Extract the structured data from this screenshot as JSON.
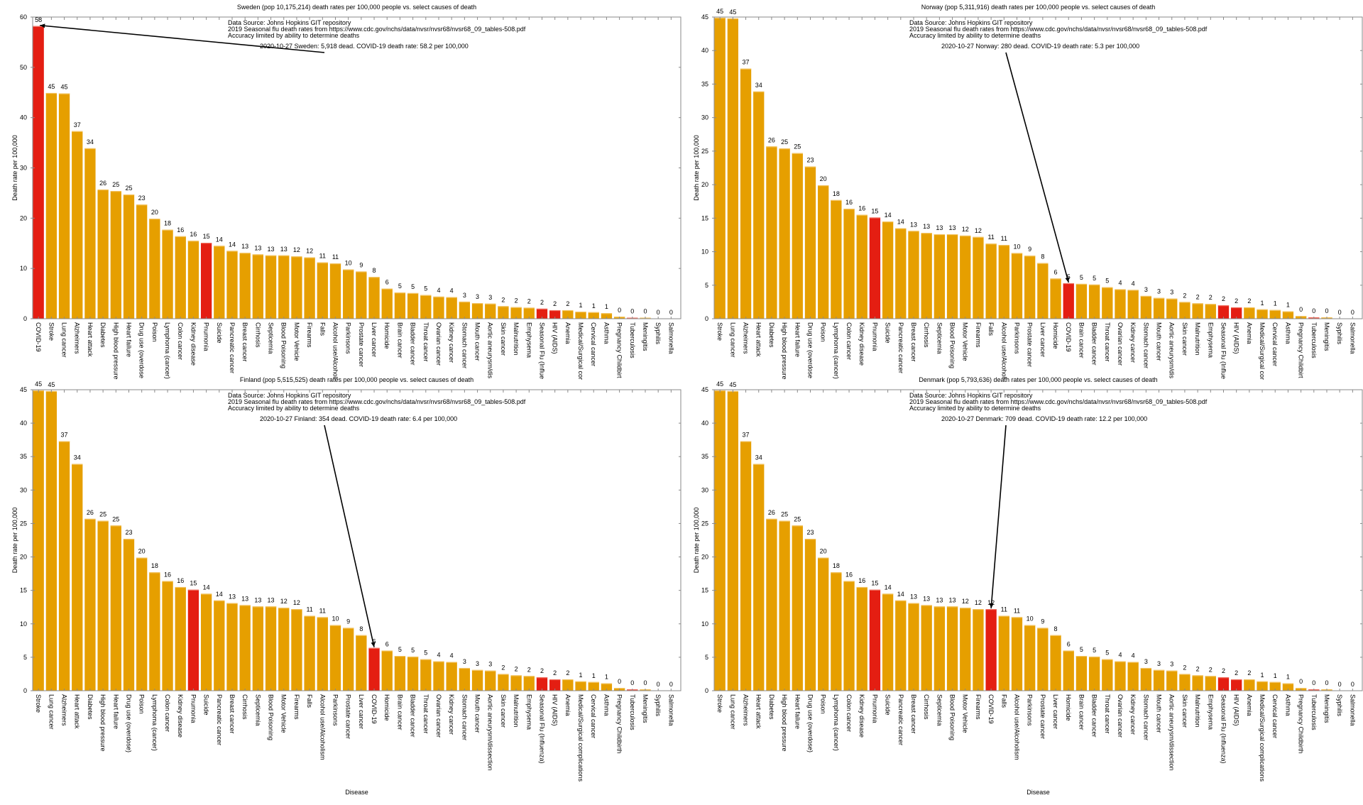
{
  "colors": {
    "bar_default": "#E69F00",
    "bar_highlight": "#E41E12",
    "bar_top_edge": "#F2C25E",
    "axis": "#8a8a8a",
    "text": "#000000"
  },
  "chart_data": [
    {
      "type": "bar",
      "panel": "top-left",
      "title": "Sweden (pop 10,175,214) death rates per 100,000 people vs. select causes of death",
      "xlabel": "",
      "ylabel": "Death rate per 100,000",
      "ylim": [
        0,
        60
      ],
      "yticks": [
        0,
        10,
        20,
        30,
        40,
        50,
        60
      ],
      "grid": false,
      "notes": [
        "Data Source: Johns Hopkins GIT repository",
        "2019 Seasonal flu death rates from https://www.cdc.gov/nchs/data/nvsr/nvsr68/nvsr68_09_tables-508.pdf",
        "Accuracy limited by ability to determine deaths"
      ],
      "annotation": "2020-10-27 Sweden: 5,918 dead.  COVID-19 death rate: 58.2 per 100,000",
      "annotation_target": "COVID-19",
      "categories": [
        "COVID-19",
        "Stroke",
        "Lung cancer",
        "Alzheimers",
        "Heart attack",
        "Diabetes",
        "High blood pressure",
        "Heart failure",
        "Drug use (overdose",
        "Poison",
        "Lymphoma (cancer)",
        "Colon cancer",
        "Kidney disease",
        "Pnumonia",
        "Suicide",
        "Pancreatic cancer",
        "Breast cancer",
        "Cirrhosis",
        "Septicemia",
        "Blood Poisoning",
        "Motor Vehicle",
        "Firearms",
        "Falls",
        "Alcohol use/Alcoholi",
        "Parkinsons",
        "Prostate cancer",
        "Liver cancer",
        "Homicide",
        "Brain cancer",
        "Bladder cancer",
        "Throat cancer",
        "Ovarian cancer",
        "Kidney cancer",
        "Stomach cancer",
        "Mouth cancer",
        "Aortic aneurysm/dis",
        "Skin cancer",
        "Malnutrition",
        "Emphysema",
        "Seasonal Flu (Influe",
        "HIV (AIDS)",
        "Anemia",
        "Medical/Surgical cor",
        "Cervical cancer",
        "Asthma",
        "Pregnancy  Childbirt",
        "Tuberculosis",
        "Meningitis",
        "Syphilis",
        "Salmonella"
      ],
      "values": [
        58.2,
        44.9,
        44.8,
        37.3,
        33.9,
        25.7,
        25.4,
        24.7,
        22.7,
        19.9,
        17.7,
        16.4,
        15.5,
        15.1,
        14.5,
        13.5,
        13.1,
        12.8,
        12.6,
        12.6,
        12.4,
        12.2,
        11.2,
        11.0,
        9.8,
        9.4,
        8.3,
        6.0,
        5.2,
        5.1,
        4.7,
        4.4,
        4.3,
        3.4,
        3.1,
        3.0,
        2.5,
        2.3,
        2.2,
        2.0,
        1.7,
        1.7,
        1.4,
        1.3,
        1.1,
        0.4,
        0.2,
        0.2,
        0.0,
        0.0
      ],
      "value_labels": [
        "58",
        "45",
        "45",
        "37",
        "34",
        "26",
        "25",
        "25",
        "23",
        "20",
        "18",
        "16",
        "16",
        "15",
        "14",
        "14",
        "13",
        "13",
        "13",
        "13",
        "12",
        "12",
        "11",
        "11",
        "10",
        "9",
        "8",
        "6",
        "5",
        "5",
        "5",
        "4",
        "4",
        "3",
        "3",
        "3",
        "2",
        "2",
        "2",
        "2",
        "2",
        "2",
        "1",
        "1",
        "1",
        "0",
        "0",
        "0",
        "0",
        "0"
      ],
      "highlighted": [
        "COVID-19",
        "Pnumonia",
        "Seasonal Flu (Influe",
        "HIV (AIDS)",
        "Tuberculosis"
      ]
    },
    {
      "type": "bar",
      "panel": "top-right",
      "title": "Norway (pop 5,311,916) death rates per 100,000 people vs. select causes of death",
      "xlabel": "",
      "ylabel": "Death rate per 100,000",
      "ylim": [
        0,
        45
      ],
      "yticks": [
        0,
        5,
        10,
        15,
        20,
        25,
        30,
        35,
        40,
        45
      ],
      "grid": false,
      "notes": [
        "Data Source: Johns Hopkins GIT repository",
        "2019 Seasonal flu death rates from https://www.cdc.gov/nchs/data/nvsr/nvsr68/nvsr68_09_tables-508.pdf",
        "Accuracy limited by ability to determine deaths"
      ],
      "annotation": "2020-10-27 Norway: 280 dead.  COVID-19 death rate: 5.3 per 100,000",
      "annotation_target": "COVID-19",
      "categories": [
        "Stroke",
        "Lung cancer",
        "Alzheimers",
        "Heart attack",
        "Diabetes",
        "High blood pressure",
        "Heart failure",
        "Drug use (overdose",
        "Poison",
        "Lymphoma (cancer)",
        "Colon cancer",
        "Kidney disease",
        "Pnumonia",
        "Suicide",
        "Pancreatic cancer",
        "Breast cancer",
        "Cirrhosis",
        "Septicemia",
        "Blood Poisoning",
        "Motor Vehicle",
        "Firearms",
        "Falls",
        "Alcohol use/Alcoholi",
        "Parkinsons",
        "Prostate cancer",
        "Liver cancer",
        "Homicide",
        "COVID-19",
        "Brain cancer",
        "Bladder cancer",
        "Throat cancer",
        "Ovarian cancer",
        "Kidney cancer",
        "Stomach cancer",
        "Mouth cancer",
        "Aortic aneurysm/dis",
        "Skin cancer",
        "Malnutrition",
        "Emphysema",
        "Seasonal Flu (Influe",
        "HIV (AIDS)",
        "Anemia",
        "Medical/Surgical cor",
        "Cervical cancer",
        "Asthma",
        "Pregnancy  Childbirt",
        "Tuberculosis",
        "Meningitis",
        "Syphilis",
        "Salmonella"
      ],
      "values": [
        44.9,
        44.8,
        37.3,
        33.9,
        25.7,
        25.4,
        24.7,
        22.7,
        19.9,
        17.7,
        16.4,
        15.5,
        15.1,
        14.5,
        13.5,
        13.1,
        12.8,
        12.6,
        12.6,
        12.4,
        12.2,
        11.2,
        11.0,
        9.8,
        9.4,
        8.3,
        6.0,
        5.3,
        5.2,
        5.1,
        4.7,
        4.4,
        4.3,
        3.4,
        3.1,
        3.0,
        2.5,
        2.3,
        2.2,
        2.0,
        1.7,
        1.7,
        1.4,
        1.3,
        1.1,
        0.4,
        0.2,
        0.2,
        0.0,
        0.0
      ],
      "value_labels": [
        "45",
        "45",
        "37",
        "34",
        "26",
        "25",
        "25",
        "23",
        "20",
        "18",
        "16",
        "16",
        "15",
        "14",
        "14",
        "13",
        "13",
        "13",
        "13",
        "12",
        "12",
        "11",
        "11",
        "10",
        "9",
        "8",
        "6",
        "5",
        "5",
        "5",
        "5",
        "4",
        "4",
        "3",
        "3",
        "3",
        "2",
        "2",
        "2",
        "2",
        "2",
        "2",
        "1",
        "1",
        "1",
        "0",
        "0",
        "0",
        "0",
        "0"
      ],
      "highlighted": [
        "COVID-19",
        "Pnumonia",
        "Seasonal Flu (Influe",
        "HIV (AIDS)",
        "Tuberculosis"
      ]
    },
    {
      "type": "bar",
      "panel": "bottom-left",
      "title": "Finland (pop 5,515,525) death rates per 100,000 people vs. select causes of death",
      "xlabel": "Disease",
      "ylabel": "Death rate per 100,000",
      "ylim": [
        0,
        45
      ],
      "yticks": [
        0,
        5,
        10,
        15,
        20,
        25,
        30,
        35,
        40,
        45
      ],
      "grid": false,
      "notes": [
        "Data Source: Johns Hopkins GIT repository",
        "2019 Seasonal flu death rates from https://www.cdc.gov/nchs/data/nvsr/nvsr68/nvsr68_09_tables-508.pdf",
        "Accuracy limited by ability to determine deaths"
      ],
      "annotation": "2020-10-27 Finland: 354 dead.  COVID-19 death rate: 6.4 per 100,000",
      "annotation_target": "COVID-19",
      "categories": [
        "Stroke",
        "Lung cancer",
        "Alzheimers",
        "Heart attack",
        "Diabetes",
        "High blood pressure",
        "Heart failure",
        "Drug use (overdose)",
        "Poison",
        "Lymphoma (cancer)",
        "Colon cancer",
        "Kidney disease",
        "Pnumonia",
        "Suicide",
        "Pancreatic cancer",
        "Breast cancer",
        "Cirrhosis",
        "Septicemia",
        "Blood Poisoning",
        "Motor Vehicle",
        "Firearms",
        "Falls",
        "Alcohol use/Alcoholism",
        "Parkinsons",
        "Prostate cancer",
        "Liver cancer",
        "COVID-19",
        "Homicide",
        "Brain cancer",
        "Bladder cancer",
        "Throat cancer",
        "Ovarian cancer",
        "Kidney cancer",
        "Stomach cancer",
        "Mouth cancer",
        "Aortic aneurysm/dissection",
        "Skin cancer",
        "Malnutrition",
        "Emphysema",
        "Seasonal Flu (Influenza)",
        "HIV (AIDS)",
        "Anemia",
        "Medical/Surgical complications",
        "Cervical cancer",
        "Asthma",
        "Pregnancy  Childbirth",
        "Tuberculosis",
        "Meningitis",
        "Syphilis",
        "Salmonella"
      ],
      "values": [
        44.9,
        44.8,
        37.3,
        33.9,
        25.7,
        25.4,
        24.7,
        22.7,
        19.9,
        17.7,
        16.4,
        15.5,
        15.1,
        14.5,
        13.5,
        13.1,
        12.8,
        12.6,
        12.6,
        12.4,
        12.2,
        11.2,
        11.0,
        9.8,
        9.4,
        8.3,
        6.4,
        6.0,
        5.2,
        5.1,
        4.7,
        4.4,
        4.3,
        3.4,
        3.1,
        3.0,
        2.5,
        2.3,
        2.2,
        2.0,
        1.7,
        1.7,
        1.4,
        1.3,
        1.1,
        0.4,
        0.2,
        0.2,
        0.0,
        0.0
      ],
      "value_labels": [
        "45",
        "45",
        "37",
        "34",
        "26",
        "25",
        "25",
        "23",
        "20",
        "18",
        "16",
        "16",
        "15",
        "14",
        "14",
        "13",
        "13",
        "13",
        "13",
        "12",
        "12",
        "11",
        "11",
        "10",
        "9",
        "8",
        "6",
        "6",
        "5",
        "5",
        "5",
        "4",
        "4",
        "3",
        "3",
        "3",
        "2",
        "2",
        "2",
        "2",
        "2",
        "2",
        "1",
        "1",
        "1",
        "0",
        "0",
        "0",
        "0",
        "0"
      ],
      "highlighted": [
        "COVID-19",
        "Pnumonia",
        "Seasonal Flu (Influenza)",
        "HIV (AIDS)",
        "Tuberculosis"
      ]
    },
    {
      "type": "bar",
      "panel": "bottom-right",
      "title": "Denmark (pop 5,793,636) death rates per 100,000 people vs. select causes of death",
      "xlabel": "Disease",
      "ylabel": "Death rate per 100,000",
      "ylim": [
        0,
        45
      ],
      "yticks": [
        0,
        5,
        10,
        15,
        20,
        25,
        30,
        35,
        40,
        45
      ],
      "grid": false,
      "notes": [
        "Data Source: Johns Hopkins GIT repository",
        "2019 Seasonal flu death rates from https://www.cdc.gov/nchs/data/nvsr/nvsr68/nvsr68_09_tables-508.pdf",
        "Accuracy limited by ability to determine deaths"
      ],
      "annotation": "2020-10-27 Denmark: 709 dead.  COVID-19 death rate: 12.2 per 100,000",
      "annotation_target": "COVID-19",
      "categories": [
        "Stroke",
        "Lung cancer",
        "Alzheimers",
        "Heart attack",
        "Diabetes",
        "High blood pressure",
        "Heart failure",
        "Drug use (overdose)",
        "Poison",
        "Lymphoma (cancer)",
        "Colon cancer",
        "Kidney disease",
        "Pnumonia",
        "Suicide",
        "Pancreatic cancer",
        "Breast cancer",
        "Cirrhosis",
        "Septicemia",
        "Blood Poisoning",
        "Motor Vehicle",
        "Firearms",
        "COVID-19",
        "Falls",
        "Alcohol use/Alcoholism",
        "Parkinsons",
        "Prostate cancer",
        "Liver cancer",
        "Homicide",
        "Brain cancer",
        "Bladder cancer",
        "Throat cancer",
        "Ovarian cancer",
        "Kidney cancer",
        "Stomach cancer",
        "Mouth cancer",
        "Aortic aneurysm/dissection",
        "Skin cancer",
        "Malnutrition",
        "Emphysema",
        "Seasonal Flu (Influenza)",
        "HIV (AIDS)",
        "Anemia",
        "Medical/Surgical complications",
        "Cervical cancer",
        "Asthma",
        "Pregnancy  Childbirth",
        "Tuberculosis",
        "Meningitis",
        "Syphilis",
        "Salmonella"
      ],
      "values": [
        44.9,
        44.8,
        37.3,
        33.9,
        25.7,
        25.4,
        24.7,
        22.7,
        19.9,
        17.7,
        16.4,
        15.5,
        15.1,
        14.5,
        13.5,
        13.1,
        12.8,
        12.6,
        12.6,
        12.4,
        12.2,
        12.2,
        11.2,
        11.0,
        9.8,
        9.4,
        8.3,
        6.0,
        5.2,
        5.1,
        4.7,
        4.4,
        4.3,
        3.4,
        3.1,
        3.0,
        2.5,
        2.3,
        2.2,
        2.0,
        1.7,
        1.7,
        1.4,
        1.3,
        1.1,
        0.4,
        0.2,
        0.2,
        0.0,
        0.0
      ],
      "value_labels": [
        "45",
        "45",
        "37",
        "34",
        "26",
        "25",
        "25",
        "23",
        "20",
        "18",
        "16",
        "16",
        "15",
        "14",
        "14",
        "13",
        "13",
        "13",
        "13",
        "12",
        "12",
        "12",
        "11",
        "11",
        "10",
        "9",
        "8",
        "6",
        "5",
        "5",
        "5",
        "4",
        "4",
        "3",
        "3",
        "3",
        "2",
        "2",
        "2",
        "2",
        "2",
        "2",
        "1",
        "1",
        "1",
        "0",
        "0",
        "0",
        "0",
        "0"
      ],
      "highlighted": [
        "COVID-19",
        "Pnumonia",
        "Seasonal Flu (Influenza)",
        "HIV (AIDS)",
        "Tuberculosis"
      ]
    }
  ]
}
